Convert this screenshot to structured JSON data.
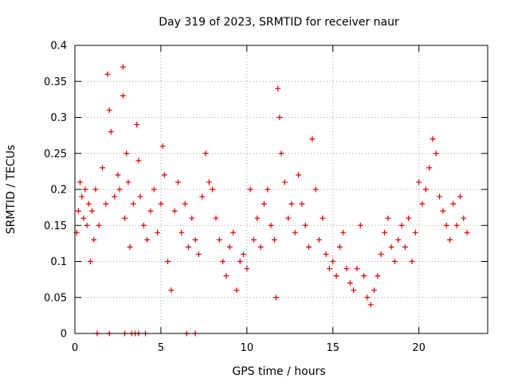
{
  "chart_data": {
    "type": "scatter",
    "title": "Day 319 of 2023, SRMTID for receiver naur",
    "xlabel": "GPS time / hours",
    "ylabel": "SRMTID / TECUs",
    "xlim": [
      0,
      24
    ],
    "ylim": [
      0,
      0.4
    ],
    "xticks": [
      0,
      5,
      10,
      15,
      20
    ],
    "xtick_labels": [
      "0",
      "5",
      "10",
      "15",
      "20"
    ],
    "yticks": [
      0,
      0.05,
      0.1,
      0.15,
      0.2,
      0.25,
      0.3,
      0.35,
      0.4
    ],
    "ytick_labels": [
      "0",
      "0.05",
      "0.1",
      "0.15",
      "0.2",
      "0.25",
      "0.3",
      "0.35",
      "0.4"
    ],
    "grid": true,
    "marker": "+",
    "color": "#e00000",
    "series": [
      {
        "name": "SRMTID",
        "points": [
          [
            0.1,
            0.14
          ],
          [
            0.2,
            0.17
          ],
          [
            0.3,
            0.21
          ],
          [
            0.4,
            0.19
          ],
          [
            0.5,
            0.16
          ],
          [
            0.6,
            0.2
          ],
          [
            0.7,
            0.15
          ],
          [
            0.8,
            0.18
          ],
          [
            0.9,
            0.1
          ],
          [
            1.0,
            0.17
          ],
          [
            1.1,
            0.13
          ],
          [
            1.2,
            0.2
          ],
          [
            1.4,
            0.15
          ],
          [
            1.6,
            0.23
          ],
          [
            1.8,
            0.18
          ],
          [
            1.9,
            0.36
          ],
          [
            2.0,
            0.31
          ],
          [
            2.1,
            0.28
          ],
          [
            2.3,
            0.19
          ],
          [
            2.5,
            0.22
          ],
          [
            2.6,
            0.2
          ],
          [
            2.8,
            0.37
          ],
          [
            2.8,
            0.33
          ],
          [
            2.9,
            0.16
          ],
          [
            3.0,
            0.25
          ],
          [
            3.1,
            0.21
          ],
          [
            3.2,
            0.12
          ],
          [
            3.4,
            0.18
          ],
          [
            3.6,
            0.29
          ],
          [
            3.7,
            0.24
          ],
          [
            3.8,
            0.19
          ],
          [
            4.0,
            0.15
          ],
          [
            4.2,
            0.13
          ],
          [
            4.4,
            0.17
          ],
          [
            4.6,
            0.2
          ],
          [
            4.8,
            0.14
          ],
          [
            5.0,
            0.18
          ],
          [
            5.1,
            0.26
          ],
          [
            5.2,
            0.22
          ],
          [
            5.4,
            0.1
          ],
          [
            5.6,
            0.06
          ],
          [
            5.8,
            0.17
          ],
          [
            6.0,
            0.21
          ],
          [
            6.2,
            0.14
          ],
          [
            6.4,
            0.18
          ],
          [
            6.6,
            0.12
          ],
          [
            6.8,
            0.16
          ],
          [
            7.0,
            0.13
          ],
          [
            7.2,
            0.11
          ],
          [
            7.4,
            0.19
          ],
          [
            7.6,
            0.25
          ],
          [
            7.8,
            0.21
          ],
          [
            8.0,
            0.2
          ],
          [
            8.2,
            0.16
          ],
          [
            8.4,
            0.13
          ],
          [
            8.6,
            0.1
          ],
          [
            8.8,
            0.08
          ],
          [
            9.0,
            0.12
          ],
          [
            9.2,
            0.14
          ],
          [
            9.4,
            0.06
          ],
          [
            9.6,
            0.1
          ],
          [
            9.8,
            0.11
          ],
          [
            10.0,
            0.09
          ],
          [
            10.2,
            0.2
          ],
          [
            10.4,
            0.13
          ],
          [
            10.6,
            0.16
          ],
          [
            10.8,
            0.12
          ],
          [
            11.0,
            0.18
          ],
          [
            11.2,
            0.2
          ],
          [
            11.4,
            0.15
          ],
          [
            11.6,
            0.13
          ],
          [
            11.7,
            0.05
          ],
          [
            11.8,
            0.34
          ],
          [
            11.9,
            0.3
          ],
          [
            12.0,
            0.25
          ],
          [
            12.2,
            0.21
          ],
          [
            12.4,
            0.16
          ],
          [
            12.6,
            0.18
          ],
          [
            12.8,
            0.14
          ],
          [
            13.0,
            0.22
          ],
          [
            13.2,
            0.18
          ],
          [
            13.4,
            0.15
          ],
          [
            13.6,
            0.12
          ],
          [
            13.8,
            0.27
          ],
          [
            14.0,
            0.2
          ],
          [
            14.2,
            0.13
          ],
          [
            14.4,
            0.16
          ],
          [
            14.6,
            0.11
          ],
          [
            14.8,
            0.09
          ],
          [
            15.0,
            0.1
          ],
          [
            15.2,
            0.08
          ],
          [
            15.4,
            0.12
          ],
          [
            15.6,
            0.14
          ],
          [
            15.8,
            0.09
          ],
          [
            16.0,
            0.07
          ],
          [
            16.2,
            0.06
          ],
          [
            16.4,
            0.09
          ],
          [
            16.6,
            0.15
          ],
          [
            16.8,
            0.08
          ],
          [
            17.0,
            0.05
          ],
          [
            17.2,
            0.04
          ],
          [
            17.4,
            0.06
          ],
          [
            17.6,
            0.08
          ],
          [
            17.8,
            0.11
          ],
          [
            18.0,
            0.14
          ],
          [
            18.2,
            0.16
          ],
          [
            18.4,
            0.12
          ],
          [
            18.6,
            0.1
          ],
          [
            18.8,
            0.13
          ],
          [
            19.0,
            0.15
          ],
          [
            19.2,
            0.12
          ],
          [
            19.4,
            0.16
          ],
          [
            19.6,
            0.1
          ],
          [
            19.8,
            0.14
          ],
          [
            20.0,
            0.21
          ],
          [
            20.2,
            0.18
          ],
          [
            20.4,
            0.2
          ],
          [
            20.6,
            0.23
          ],
          [
            20.8,
            0.27
          ],
          [
            21.0,
            0.25
          ],
          [
            21.2,
            0.19
          ],
          [
            21.4,
            0.17
          ],
          [
            21.6,
            0.15
          ],
          [
            21.8,
            0.13
          ],
          [
            22.0,
            0.18
          ],
          [
            22.2,
            0.15
          ],
          [
            22.4,
            0.19
          ],
          [
            22.6,
            0.16
          ],
          [
            22.8,
            0.14
          ],
          [
            1.3,
            0.0
          ],
          [
            2.0,
            0.0
          ],
          [
            2.9,
            0.0
          ],
          [
            3.3,
            0.0
          ],
          [
            3.5,
            0.0
          ],
          [
            3.7,
            0.0
          ],
          [
            4.1,
            0.0
          ],
          [
            6.5,
            0.0
          ],
          [
            7.0,
            0.0
          ]
        ]
      }
    ]
  }
}
